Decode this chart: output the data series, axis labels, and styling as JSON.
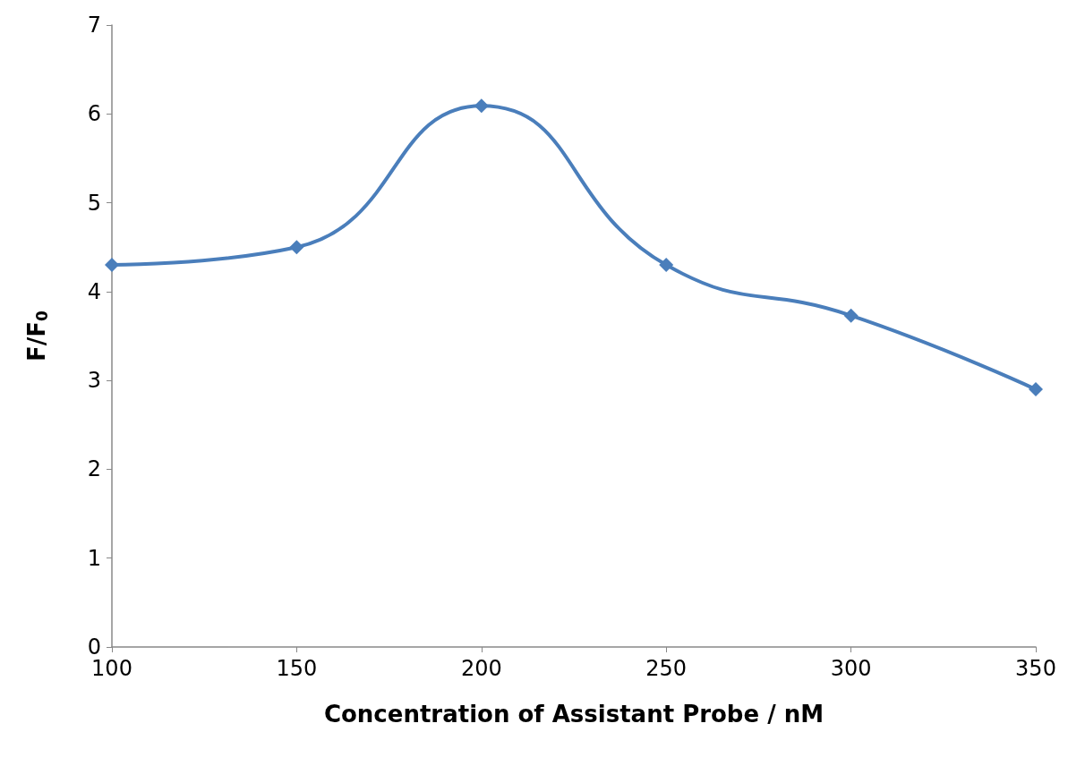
{
  "chart_data": {
    "type": "line",
    "xlabel": "Concentration of Assistant Probe / nM",
    "ylabel": "F/F$_{0}$",
    "x": [
      100,
      150,
      200,
      250,
      300,
      350
    ],
    "series": [
      {
        "color": "#4a7ebb",
        "values": [
          4.3,
          4.5,
          6.09,
          4.3,
          3.73,
          2.9
        ]
      }
    ],
    "xlim": [
      100,
      350
    ],
    "xticks": [
      100,
      150,
      200,
      250,
      300,
      350
    ],
    "ylim": [
      0,
      7
    ],
    "yticks": [
      0,
      1,
      2,
      3,
      4,
      5,
      6,
      7
    ],
    "grid": false,
    "marker": "diamond",
    "line_style": "solid"
  }
}
